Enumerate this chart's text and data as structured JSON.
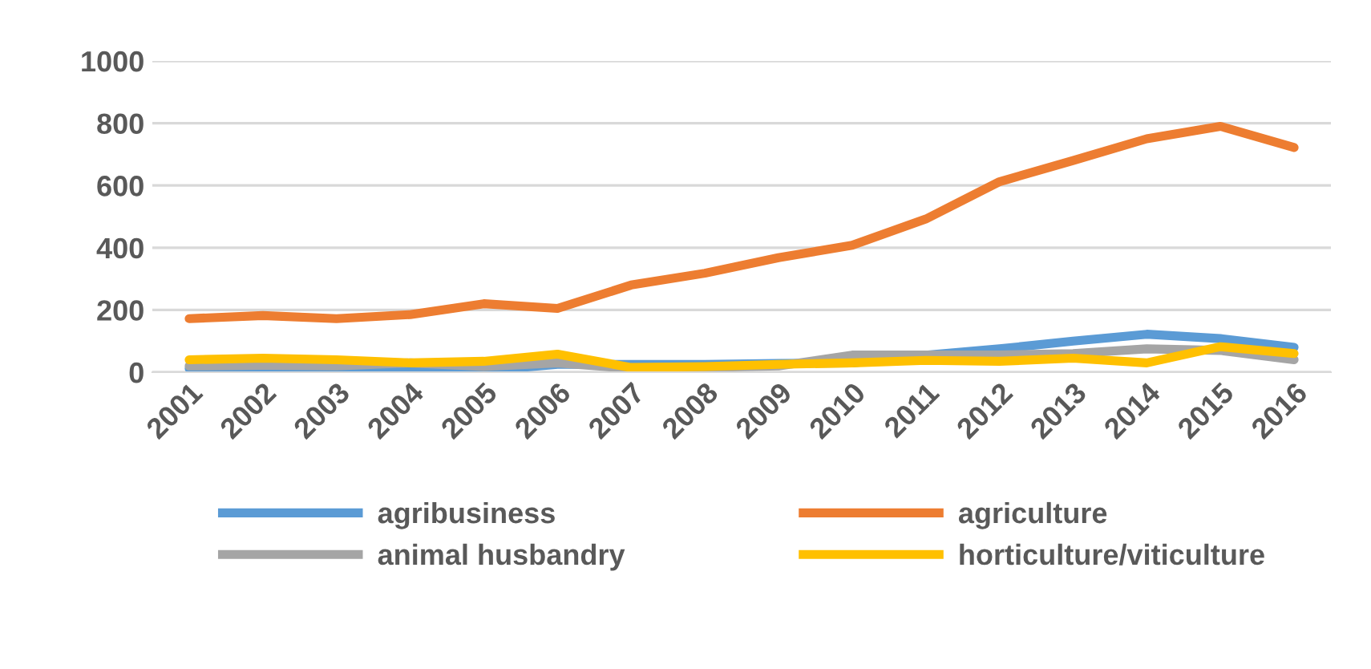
{
  "chart_data": {
    "type": "line",
    "categories": [
      "2001",
      "2002",
      "2003",
      "2004",
      "2005",
      "2006",
      "2007",
      "2008",
      "2009",
      "2010",
      "2011",
      "2012",
      "2013",
      "2014",
      "2015",
      "2016"
    ],
    "series": [
      {
        "name": "agribusiness",
        "color": "#5b9bd5",
        "values": [
          12,
          15,
          12,
          8,
          5,
          25,
          25,
          25,
          28,
          30,
          55,
          75,
          100,
          122,
          108,
          80
        ]
      },
      {
        "name": "agriculture",
        "color": "#ed7d31",
        "values": [
          172,
          182,
          172,
          185,
          220,
          205,
          280,
          318,
          368,
          408,
          492,
          612,
          680,
          750,
          790,
          722
        ]
      },
      {
        "name": "animal husbandry",
        "color": "#a5a5a5",
        "values": [
          20,
          22,
          20,
          30,
          18,
          30,
          12,
          15,
          20,
          55,
          55,
          55,
          60,
          75,
          70,
          40
        ]
      },
      {
        "name": "horticulture/viticulture",
        "color": "#ffc000",
        "values": [
          40,
          45,
          40,
          30,
          35,
          58,
          15,
          18,
          25,
          30,
          38,
          35,
          45,
          30,
          82,
          60
        ]
      }
    ],
    "ylim": [
      0,
      1000
    ],
    "yticks": [
      0,
      200,
      400,
      600,
      800,
      1000
    ],
    "grid": "y",
    "legend": "bottom",
    "line_style": "solid",
    "marker": "none"
  }
}
